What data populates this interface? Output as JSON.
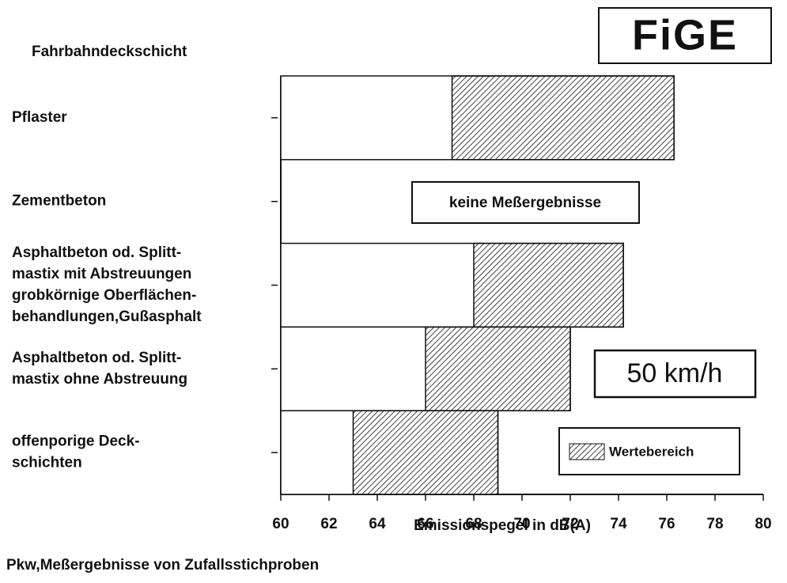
{
  "chart_data": {
    "type": "range-bar",
    "title": "Fahrbahndeckschicht",
    "logo": "FiGE",
    "categories": [
      [
        "Pflaster"
      ],
      [
        "Zementbeton"
      ],
      [
        "Asphaltbeton od. Splitt-",
        "mastix mit Abstreuungen",
        "grobkörnige Oberflächen-",
        "behandlungen,Gußasphalt"
      ],
      [
        "Asphaltbeton od. Splitt-",
        "mastix ohne Abstreuung"
      ],
      [
        "offenporige Deck-",
        "schichten"
      ]
    ],
    "ranges": [
      [
        67.1,
        76.3
      ],
      null,
      [
        68,
        74.2
      ],
      [
        66,
        72
      ],
      [
        63,
        69
      ]
    ],
    "series_name": "Wertebereich",
    "annotations": [
      "keine Meßergebnisse",
      "50 km/h"
    ],
    "xlabel": "Emissionspegel in dB(A)",
    "footnote": "Pkw,Meßergebnisse von Zufallsstichproben",
    "xlim": [
      60,
      80
    ],
    "xticks": [
      60,
      62,
      64,
      66,
      68,
      70,
      72,
      74,
      76,
      78,
      80
    ]
  }
}
